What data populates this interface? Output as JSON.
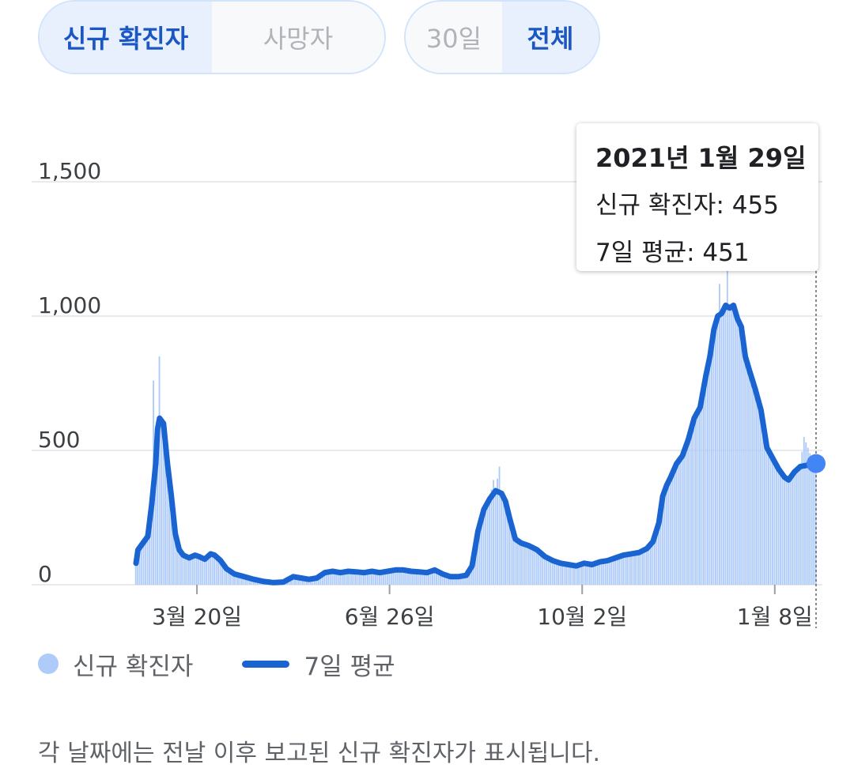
{
  "controls": {
    "metric": [
      {
        "label": "신규 확진자",
        "selected": true
      },
      {
        "label": "사망자",
        "selected": false
      }
    ],
    "range": [
      {
        "label": "30일",
        "selected": false
      },
      {
        "label": "전체",
        "selected": true
      }
    ]
  },
  "tooltip": {
    "date": "2021년 1월 29일",
    "cases_text": "신규 확진자: 455",
    "avg_text": "7일 평균: 451"
  },
  "legend": {
    "cases": "신규 확진자",
    "avg": "7일 평균"
  },
  "footnote": "각 날짜에는 전날 이후 보고된 신규 확진자가 표시됩니다.",
  "colors": {
    "bars": "#aecbfa",
    "line": "#1a64d1",
    "grid": "#e8eaed",
    "highlight_dot": "#4285f4"
  },
  "chart_data": {
    "type": "bar",
    "ylim": [
      0,
      1500
    ],
    "yticks": [
      0,
      500,
      1000,
      1500
    ],
    "ytick_labels": [
      "0",
      "500",
      "1,000",
      "1,500"
    ],
    "xticks": [
      {
        "day": 31,
        "label": "3월 20일"
      },
      {
        "day": 129,
        "label": "6월 26일"
      },
      {
        "day": 227,
        "label": "10월 2일"
      },
      {
        "day": 325,
        "label": "1월 8일"
      }
    ],
    "day_range": [
      0,
      346
    ],
    "highlight": {
      "day": 346,
      "cases": 455,
      "avg": 451
    },
    "series": [
      {
        "name": "7일 평균",
        "kind": "line",
        "points": [
          [
            0,
            80
          ],
          [
            1,
            130
          ],
          [
            3,
            150
          ],
          [
            6,
            180
          ],
          [
            8,
            300
          ],
          [
            10,
            450
          ],
          [
            11,
            580
          ],
          [
            12,
            620
          ],
          [
            14,
            600
          ],
          [
            16,
            450
          ],
          [
            18,
            330
          ],
          [
            20,
            190
          ],
          [
            22,
            130
          ],
          [
            24,
            110
          ],
          [
            27,
            100
          ],
          [
            30,
            110
          ],
          [
            32,
            105
          ],
          [
            35,
            95
          ],
          [
            38,
            115
          ],
          [
            40,
            110
          ],
          [
            43,
            90
          ],
          [
            46,
            60
          ],
          [
            50,
            40
          ],
          [
            55,
            30
          ],
          [
            60,
            20
          ],
          [
            65,
            12
          ],
          [
            70,
            8
          ],
          [
            75,
            10
          ],
          [
            80,
            30
          ],
          [
            84,
            25
          ],
          [
            88,
            20
          ],
          [
            92,
            25
          ],
          [
            96,
            45
          ],
          [
            100,
            50
          ],
          [
            104,
            45
          ],
          [
            108,
            50
          ],
          [
            112,
            48
          ],
          [
            116,
            45
          ],
          [
            120,
            50
          ],
          [
            124,
            45
          ],
          [
            128,
            50
          ],
          [
            132,
            55
          ],
          [
            136,
            55
          ],
          [
            140,
            50
          ],
          [
            144,
            48
          ],
          [
            148,
            45
          ],
          [
            152,
            55
          ],
          [
            156,
            40
          ],
          [
            160,
            30
          ],
          [
            164,
            30
          ],
          [
            168,
            35
          ],
          [
            171,
            70
          ],
          [
            174,
            200
          ],
          [
            177,
            280
          ],
          [
            180,
            320
          ],
          [
            183,
            350
          ],
          [
            186,
            340
          ],
          [
            188,
            310
          ],
          [
            190,
            250
          ],
          [
            193,
            170
          ],
          [
            196,
            155
          ],
          [
            200,
            145
          ],
          [
            204,
            130
          ],
          [
            208,
            105
          ],
          [
            212,
            90
          ],
          [
            216,
            80
          ],
          [
            220,
            75
          ],
          [
            224,
            70
          ],
          [
            228,
            80
          ],
          [
            232,
            75
          ],
          [
            236,
            85
          ],
          [
            240,
            90
          ],
          [
            244,
            100
          ],
          [
            248,
            110
          ],
          [
            252,
            115
          ],
          [
            256,
            120
          ],
          [
            260,
            135
          ],
          [
            263,
            160
          ],
          [
            266,
            230
          ],
          [
            268,
            330
          ],
          [
            270,
            370
          ],
          [
            272,
            400
          ],
          [
            275,
            450
          ],
          [
            278,
            480
          ],
          [
            281,
            540
          ],
          [
            284,
            620
          ],
          [
            287,
            660
          ],
          [
            290,
            780
          ],
          [
            292,
            850
          ],
          [
            294,
            950
          ],
          [
            296,
            1000
          ],
          [
            298,
            1010
          ],
          [
            300,
            1040
          ],
          [
            302,
            1030
          ],
          [
            304,
            1040
          ],
          [
            306,
            990
          ],
          [
            308,
            960
          ],
          [
            310,
            850
          ],
          [
            312,
            800
          ],
          [
            315,
            730
          ],
          [
            318,
            650
          ],
          [
            321,
            510
          ],
          [
            324,
            470
          ],
          [
            327,
            430
          ],
          [
            330,
            400
          ],
          [
            332,
            390
          ],
          [
            335,
            420
          ],
          [
            338,
            440
          ],
          [
            346,
            451
          ]
        ]
      },
      {
        "name": "신규 확진자",
        "kind": "bar",
        "points": [
          [
            0,
            80
          ],
          [
            1,
            130
          ],
          [
            3,
            150
          ],
          [
            6,
            180
          ],
          [
            8,
            300
          ],
          [
            9,
            760
          ],
          [
            10,
            450
          ],
          [
            11,
            580
          ],
          [
            12,
            850
          ],
          [
            13,
            620
          ],
          [
            14,
            600
          ],
          [
            16,
            450
          ],
          [
            18,
            330
          ],
          [
            20,
            190
          ],
          [
            22,
            130
          ],
          [
            24,
            110
          ],
          [
            27,
            100
          ],
          [
            30,
            110
          ],
          [
            32,
            105
          ],
          [
            35,
            95
          ],
          [
            38,
            115
          ],
          [
            40,
            110
          ],
          [
            43,
            90
          ],
          [
            46,
            60
          ],
          [
            50,
            40
          ],
          [
            55,
            30
          ],
          [
            60,
            20
          ],
          [
            65,
            12
          ],
          [
            70,
            8
          ],
          [
            75,
            10
          ],
          [
            80,
            30
          ],
          [
            84,
            25
          ],
          [
            88,
            20
          ],
          [
            92,
            25
          ],
          [
            96,
            45
          ],
          [
            100,
            50
          ],
          [
            104,
            45
          ],
          [
            108,
            50
          ],
          [
            112,
            48
          ],
          [
            116,
            45
          ],
          [
            120,
            50
          ],
          [
            124,
            45
          ],
          [
            128,
            50
          ],
          [
            132,
            55
          ],
          [
            136,
            55
          ],
          [
            140,
            50
          ],
          [
            144,
            48
          ],
          [
            148,
            45
          ],
          [
            152,
            55
          ],
          [
            156,
            40
          ],
          [
            160,
            30
          ],
          [
            164,
            30
          ],
          [
            168,
            35
          ],
          [
            171,
            70
          ],
          [
            174,
            200
          ],
          [
            177,
            280
          ],
          [
            180,
            320
          ],
          [
            182,
            390
          ],
          [
            183,
            350
          ],
          [
            185,
            440
          ],
          [
            186,
            340
          ],
          [
            188,
            310
          ],
          [
            190,
            250
          ],
          [
            193,
            170
          ],
          [
            196,
            155
          ],
          [
            200,
            145
          ],
          [
            204,
            130
          ],
          [
            208,
            105
          ],
          [
            212,
            90
          ],
          [
            216,
            80
          ],
          [
            220,
            75
          ],
          [
            224,
            70
          ],
          [
            228,
            80
          ],
          [
            232,
            75
          ],
          [
            236,
            85
          ],
          [
            240,
            90
          ],
          [
            244,
            100
          ],
          [
            248,
            110
          ],
          [
            252,
            115
          ],
          [
            256,
            120
          ],
          [
            260,
            135
          ],
          [
            263,
            160
          ],
          [
            266,
            230
          ],
          [
            268,
            330
          ],
          [
            270,
            370
          ],
          [
            272,
            400
          ],
          [
            275,
            450
          ],
          [
            278,
            480
          ],
          [
            281,
            540
          ],
          [
            284,
            620
          ],
          [
            287,
            660
          ],
          [
            290,
            780
          ],
          [
            292,
            850
          ],
          [
            294,
            950
          ],
          [
            296,
            1000
          ],
          [
            297,
            1120
          ],
          [
            298,
            1010
          ],
          [
            300,
            1040
          ],
          [
            301,
            1180
          ],
          [
            302,
            1030
          ],
          [
            304,
            1040
          ],
          [
            306,
            990
          ],
          [
            308,
            960
          ],
          [
            310,
            850
          ],
          [
            312,
            800
          ],
          [
            315,
            730
          ],
          [
            318,
            650
          ],
          [
            321,
            510
          ],
          [
            324,
            470
          ],
          [
            327,
            430
          ],
          [
            330,
            400
          ],
          [
            332,
            390
          ],
          [
            335,
            420
          ],
          [
            338,
            440
          ],
          [
            340,
            550
          ],
          [
            344,
            470
          ],
          [
            346,
            455
          ]
        ]
      }
    ]
  }
}
